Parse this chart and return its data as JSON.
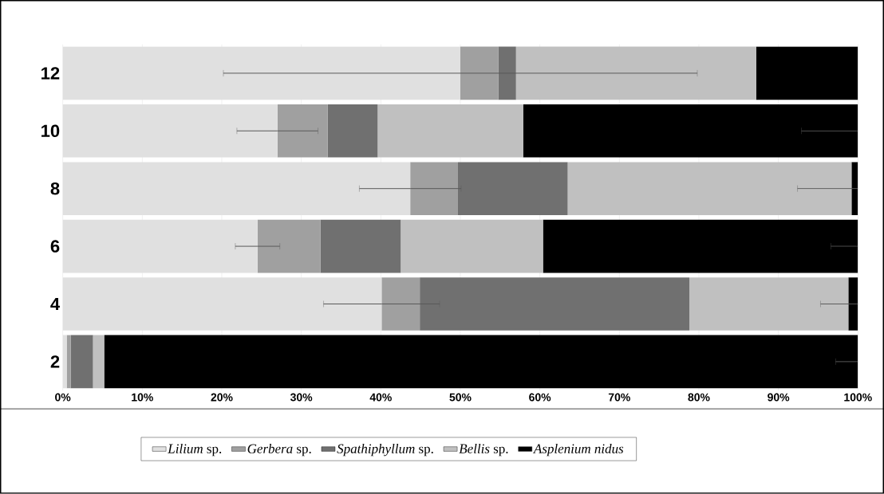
{
  "chart_data": {
    "type": "bar",
    "orientation": "horizontal",
    "stacked": true,
    "categories": [
      "12",
      "10",
      "8",
      "6",
      "4",
      "2"
    ],
    "series": [
      {
        "name": "*Lilium* sp.",
        "color": "#e0e0e0",
        "values": [
          50.0,
          27.0,
          43.7,
          24.5,
          40.1,
          0.5
        ],
        "errors": [
          29.8,
          5.1,
          6.4,
          2.8,
          7.3,
          null
        ]
      },
      {
        "name": "*Gerbera* sp.",
        "color": "#a0a0a0",
        "values": [
          4.8,
          6.3,
          6.0,
          7.9,
          4.8,
          0.5
        ]
      },
      {
        "name": "*Spathiphyllum* sp.",
        "color": "#707070",
        "values": [
          2.2,
          6.3,
          13.8,
          10.1,
          33.9,
          2.8
        ]
      },
      {
        "name": "*Bellis* sp.",
        "color": "#c0c0c0",
        "values": [
          30.2,
          18.3,
          35.7,
          17.9,
          20.0,
          1.4
        ]
      },
      {
        "name": "*Asplenium nidus*",
        "color": "#000000",
        "values": [
          12.8,
          42.1,
          0.8,
          39.6,
          1.2,
          94.8
        ],
        "errors": [
          null,
          [
            92.9,
            100
          ],
          [
            92.4,
            100
          ],
          [
            96.6,
            100
          ],
          [
            95.3,
            100
          ],
          [
            97.2,
            100
          ]
        ]
      }
    ],
    "xlim": [
      0,
      100
    ],
    "xticks": [
      {
        "value": 0,
        "label": "0%"
      },
      {
        "value": 10,
        "label": "10%"
      },
      {
        "value": 20,
        "label": "20%"
      },
      {
        "value": 30,
        "label": "30%"
      },
      {
        "value": 40,
        "label": "40%"
      },
      {
        "value": 50,
        "label": "50%"
      },
      {
        "value": 60,
        "label": "60%"
      },
      {
        "value": 70,
        "label": "70%"
      },
      {
        "value": 80,
        "label": "80%"
      },
      {
        "value": 90,
        "label": "90%"
      },
      {
        "value": 100,
        "label": "100%"
      }
    ],
    "grid": "x",
    "legend": "bottom"
  }
}
